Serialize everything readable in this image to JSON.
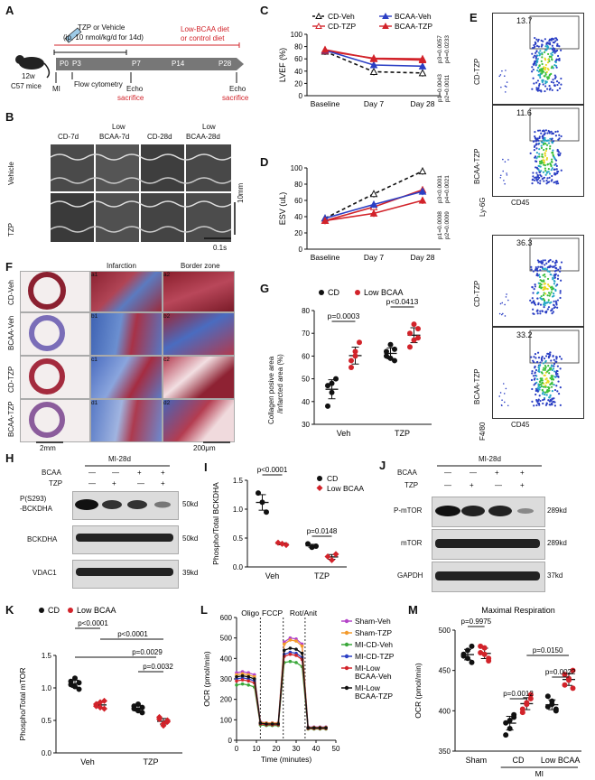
{
  "panels": {
    "A": {
      "letter": "A",
      "treatment": "TZP or Vehicle",
      "treatment_detail": "(ip, 10 nmol/kg/d for 14d)",
      "diet": "Low-BCAA diet",
      "diet_alt": "or control diet",
      "mouse_label_1": "12w",
      "mouse_label_2": "C57 mice",
      "timepoints": [
        "P0",
        "P3",
        "P7",
        "P14",
        "P28"
      ],
      "mi": "MI",
      "flow": "Flow cytometry",
      "echo1": "Echo",
      "sac1": "sacrifice",
      "echo2": "Echo",
      "sac2": "sacrifice"
    },
    "B": {
      "letter": "B",
      "cols": [
        "CD-7d",
        "Low\nBCAA-7d",
        "CD-28d",
        "Low\nBCAA-28d"
      ],
      "col1": "CD-7d",
      "col2a": "Low",
      "col2b": "BCAA-7d",
      "col3": "CD-28d",
      "col4a": "Low",
      "col4b": "BCAA-28d",
      "row1": "Vehicle",
      "row2": "TZP",
      "scale_y": "10mm",
      "scale_x": "0.1s"
    },
    "C": {
      "letter": "C",
      "ylabel": "LVEF (%)",
      "legend": [
        "CD-Veh",
        "CD-TZP",
        "BCAA-Veh",
        "BCAA-TZP"
      ],
      "pvals": [
        "p1=0.0043",
        "p2=0.0011",
        "p3=0.0057",
        "p4=0.0233"
      ]
    },
    "D": {
      "letter": "D",
      "ylabel": "ESV (uL)",
      "pvals": [
        "p1=0.0008",
        "p2=0.0009",
        "p3<0.0001",
        "p4=0.0021"
      ]
    },
    "E": {
      "letter": "E",
      "plots": [
        {
          "label": "CD-TZP",
          "value": "13.7"
        },
        {
          "label": "BCAA-TZP",
          "value": "11.6"
        },
        {
          "label": "CD-TZP",
          "value": "36.3"
        },
        {
          "label": "BCAA-TZP",
          "value": "33.2"
        }
      ],
      "y1": "Ly-6G",
      "x1": "CD45",
      "y2": "F4/80",
      "x2": "CD45"
    },
    "F": {
      "letter": "F",
      "col_infarct": "Infarction",
      "col_border": "Border zone",
      "rows": [
        "CD-Veh",
        "BCAA-Veh",
        "CD-TZP",
        "BCAA-TZP"
      ],
      "sub": [
        [
          "a1",
          "a2"
        ],
        [
          "b1",
          "b2"
        ],
        [
          "c1",
          "c2"
        ],
        [
          "d1",
          "d2"
        ]
      ],
      "scale1": "2mm",
      "scale2": "200μm"
    },
    "G": {
      "letter": "G",
      "legend": [
        "CD",
        "Low BCAA"
      ],
      "ylabel_1": "Collagen posive area",
      "ylabel_2": "/infarcted area (%)",
      "p1": "p=0.0003",
      "p2": "p<0.0413"
    },
    "H": {
      "letter": "H",
      "header": "MI-28d",
      "row_bcaa": "BCAA",
      "row_tzp": "TZP",
      "signs_bcaa": [
        "—",
        "—",
        "+",
        "+"
      ],
      "signs_tzp": [
        "—",
        "+",
        "—",
        "+"
      ],
      "bands": [
        "P(S293)",
        "-BCKDHA",
        "BCKDHA",
        "VDAC1"
      ],
      "kd": [
        "50kd",
        "50kd",
        "39kd"
      ]
    },
    "I": {
      "letter": "I",
      "legend": [
        "CD",
        "Low BCAA"
      ],
      "ylabel": "Phospho/Total BCKDHA",
      "p1": "p<0.0001",
      "p2": "p=0.0148"
    },
    "J": {
      "letter": "J",
      "header": "MI-28d",
      "row_bcaa": "BCAA",
      "row_tzp": "TZP",
      "signs_bcaa": [
        "—",
        "—",
        "+",
        "+"
      ],
      "signs_tzp": [
        "—",
        "+",
        "—",
        "+"
      ],
      "bands": [
        "P-mTOR",
        "mTOR",
        "GAPDH"
      ],
      "kd": [
        "289kd",
        "289kd",
        "37kd"
      ]
    },
    "K": {
      "letter": "K",
      "legend": [
        "CD",
        "Low BCAA"
      ],
      "ylabel": "Phospho/Total mTOR",
      "pvals": [
        "p<0.0001",
        "p<0.0001",
        "p=0.0029",
        "p=0.0032"
      ]
    },
    "L": {
      "letter": "L",
      "ylabel": "OCR (pmol/min)",
      "xlabel": "Time (minutes)",
      "phases": [
        "Oligo",
        "FCCP",
        "Rot/Anit"
      ],
      "legend": [
        "Sham-Veh",
        "Sham-TZP",
        "MI-CD-Veh",
        "MI-CD-TZP",
        "MI-Low\nBCAA-Veh",
        "MI-Low\nBCAA-TZP"
      ],
      "leg1": "Sham-Veh",
      "leg2": "Sham-TZP",
      "leg3": "MI-CD-Veh",
      "leg4": "MI-CD-TZP",
      "leg5a": "MI-Low",
      "leg5b": "BCAA-Veh",
      "leg6a": "MI-Low",
      "leg6b": "BCAA-TZP"
    },
    "M": {
      "letter": "M",
      "title": "Maximal Respiration",
      "ylabel": "OCR (pmol/min)",
      "pvals": [
        "p=0.9975",
        "p=0.0012",
        "p=0.0150",
        "p=0.0022"
      ],
      "mi": "MI"
    }
  },
  "chart_data": [
    {
      "id": "C",
      "type": "line",
      "ylabel": "LVEF (%)",
      "categories": [
        "Baseline",
        "Day 7",
        "Day 28"
      ],
      "ylim": [
        0,
        100
      ],
      "yticks": [
        0,
        20,
        40,
        60,
        80,
        100
      ],
      "series": [
        {
          "name": "CD-Veh",
          "color": "#111111",
          "values": [
            72,
            39,
            37
          ]
        },
        {
          "name": "CD-TZP",
          "color": "#d2232a",
          "values": [
            73,
            61,
            60
          ]
        },
        {
          "name": "BCAA-Veh",
          "color": "#2b3fc4",
          "values": [
            74,
            50,
            48
          ]
        },
        {
          "name": "BCAA-TZP",
          "color": "#d2232a",
          "values": [
            75,
            60,
            58
          ]
        }
      ]
    },
    {
      "id": "D",
      "type": "line",
      "ylabel": "ESV (uL)",
      "categories": [
        "Baseline",
        "Day 7",
        "Day 28"
      ],
      "ylim": [
        0,
        100
      ],
      "yticks": [
        0,
        20,
        40,
        60,
        80,
        100
      ],
      "series": [
        {
          "name": "CD-Veh",
          "color": "#111111",
          "values": [
            38,
            68,
            96
          ]
        },
        {
          "name": "CD-TZP",
          "color": "#d2232a",
          "values": [
            35,
            52,
            73
          ]
        },
        {
          "name": "BCAA-Veh",
          "color": "#2b3fc4",
          "values": [
            38,
            55,
            71
          ]
        },
        {
          "name": "BCAA-TZP",
          "color": "#d2232a",
          "values": [
            35,
            44,
            60
          ]
        }
      ]
    },
    {
      "id": "G",
      "type": "scatter",
      "ylabel": "Collagen posive area /infarcted area (%)",
      "categories": [
        "Veh",
        "TZP"
      ],
      "ylim": [
        30,
        80
      ],
      "yticks": [
        30,
        40,
        50,
        60,
        70,
        80
      ],
      "series": [
        {
          "name": "CD",
          "color": "#111111",
          "groups": [
            [
              47,
              44,
              50,
              38,
              48
            ],
            [
              62,
              59,
              63,
              60,
              65,
              58
            ]
          ]
        },
        {
          "name": "Low BCAA",
          "color": "#d2232a",
          "groups": [
            [
              58,
              62,
              66,
              55,
              60
            ],
            [
              70,
              67,
              72,
              64,
              74,
              68
            ]
          ]
        }
      ]
    },
    {
      "id": "I",
      "type": "scatter",
      "ylabel": "Phospho/Total BCKDHA",
      "categories": [
        "Veh",
        "TZP"
      ],
      "ylim": [
        0,
        1.5
      ],
      "yticks": [
        0.0,
        0.5,
        1.0,
        1.5
      ],
      "series": [
        {
          "name": "CD",
          "color": "#111111",
          "groups": [
            [
              1.28,
              1.12,
              0.95
            ],
            [
              0.4,
              0.34,
              0.36
            ]
          ]
        },
        {
          "name": "Low BCAA",
          "color": "#d2232a",
          "groups": [
            [
              0.42,
              0.4,
              0.38
            ],
            [
              0.18,
              0.12,
              0.22
            ]
          ]
        }
      ]
    },
    {
      "id": "K",
      "type": "scatter",
      "ylabel": "Phospho/Total mTOR",
      "categories": [
        "Veh",
        "TZP"
      ],
      "ylim": [
        0,
        1.5
      ],
      "yticks": [
        0.0,
        0.5,
        1.0,
        1.5
      ],
      "series": [
        {
          "name": "CD",
          "color": "#111111",
          "groups": [
            [
              1.05,
              1.15,
              0.98,
              1.1,
              1.02,
              1.08
            ],
            [
              0.72,
              0.65,
              0.7,
              0.68,
              0.75,
              0.62
            ]
          ]
        },
        {
          "name": "Low BCAA",
          "color": "#d2232a",
          "groups": [
            [
              0.72,
              0.78,
              0.68,
              0.75,
              0.7,
              0.8
            ],
            [
              0.52,
              0.45,
              0.48,
              0.55,
              0.42,
              0.5
            ]
          ]
        }
      ]
    },
    {
      "id": "L",
      "type": "line",
      "ylabel": "OCR (pmol/min)",
      "xlabel": "Time (minutes)",
      "x": [
        0,
        3,
        6,
        9,
        12,
        15,
        18,
        21,
        24,
        27,
        30,
        33,
        36,
        39,
        42,
        45
      ],
      "xlim": [
        0,
        50
      ],
      "xticks": [
        0,
        10,
        20,
        30,
        40,
        50
      ],
      "ylim": [
        0,
        600
      ],
      "yticks": [
        0,
        100,
        200,
        300,
        400,
        500,
        600
      ],
      "series": [
        {
          "name": "Sham-Veh",
          "color": "#b444c8",
          "values": [
            330,
            335,
            330,
            320,
            90,
            85,
            85,
            85,
            480,
            500,
            495,
            470,
            65,
            65,
            65,
            65
          ]
        },
        {
          "name": "Sham-TZP",
          "color": "#f39a2c",
          "values": [
            320,
            325,
            320,
            310,
            88,
            84,
            84,
            84,
            470,
            490,
            485,
            460,
            63,
            63,
            63,
            63
          ]
        },
        {
          "name": "MI-CD-Veh",
          "color": "#3ba83b",
          "values": [
            270,
            275,
            270,
            260,
            75,
            72,
            72,
            72,
            380,
            385,
            380,
            360,
            55,
            55,
            55,
            55
          ]
        },
        {
          "name": "MI-CD-TZP",
          "color": "#2b3fc4",
          "values": [
            300,
            305,
            300,
            290,
            82,
            78,
            78,
            78,
            420,
            430,
            425,
            405,
            60,
            60,
            60,
            60
          ]
        },
        {
          "name": "MI-Low BCAA-Veh",
          "color": "#d2232a",
          "values": [
            290,
            295,
            290,
            280,
            80,
            76,
            76,
            76,
            410,
            420,
            415,
            395,
            58,
            58,
            58,
            58
          ]
        },
        {
          "name": "MI-Low BCAA-TZP",
          "color": "#111111",
          "values": [
            310,
            315,
            310,
            300,
            84,
            80,
            80,
            80,
            440,
            450,
            445,
            425,
            61,
            61,
            61,
            61
          ]
        }
      ]
    },
    {
      "id": "M",
      "type": "scatter",
      "title": "Maximal Respiration",
      "ylabel": "OCR (pmol/min)",
      "categories": [
        "Sham",
        "CD",
        "Low BCAA"
      ],
      "ylim": [
        350,
        500
      ],
      "yticks": [
        350,
        400,
        450,
        500
      ],
      "series": [
        {
          "name": "CD",
          "color": "#111111",
          "groups": [
            [
              468,
              475,
              460,
              470,
              465,
              480
            ],
            [
              385,
              378,
              392,
              370,
              388,
              395
            ],
            [
              405,
              412,
              400,
              418,
              408,
              402
            ]
          ]
        },
        {
          "name": "Low BCAA",
          "color": "#d2232a",
          "groups": [
            [
              472,
              478,
              465,
              480,
              470,
              462
            ],
            [
              402,
              410,
              415,
              398,
              408,
              420
            ],
            [
              432,
              440,
              428,
              445,
              438,
              450
            ]
          ]
        }
      ]
    }
  ]
}
